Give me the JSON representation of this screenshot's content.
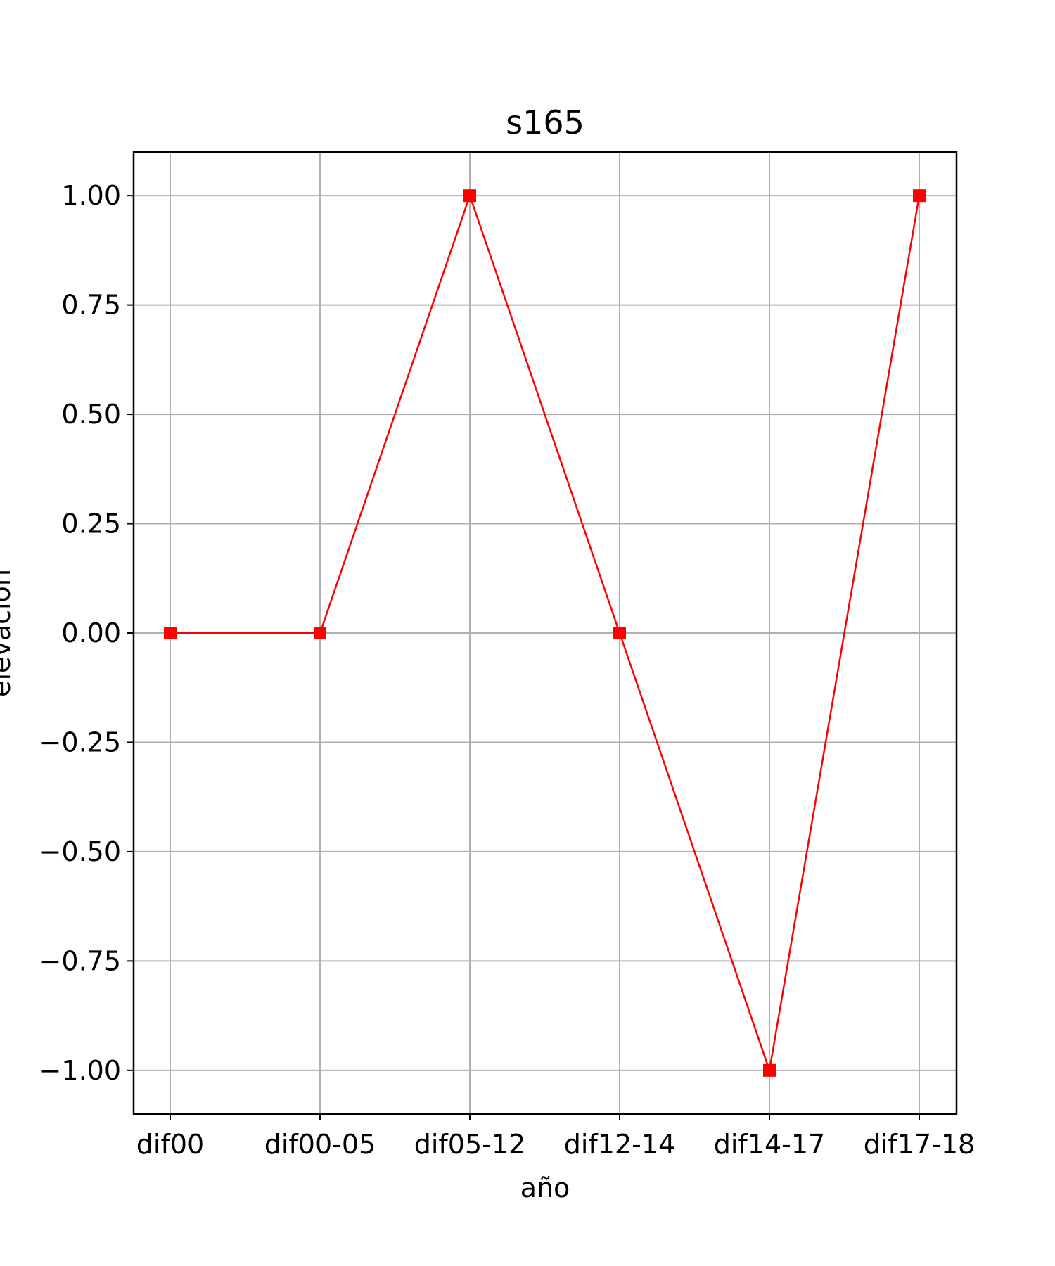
{
  "chart_data": {
    "type": "line",
    "title": "s165",
    "xlabel": "año",
    "ylabel": "elevación",
    "categories": [
      "dif00",
      "dif00-05",
      "dif05-12",
      "dif12-14",
      "dif14-17",
      "dif17-18"
    ],
    "series": [
      {
        "values": [
          0,
          0,
          1,
          0,
          -1,
          1
        ],
        "color": "#ff0000",
        "marker": "square"
      }
    ],
    "yticks": [
      1.0,
      0.75,
      0.5,
      0.25,
      0.0,
      -0.25,
      -0.5,
      -0.75,
      -1.0
    ],
    "ytick_labels": [
      "1.00",
      "0.75",
      "0.50",
      "0.25",
      "0.00",
      "−0.25",
      "−0.50",
      "−0.75",
      "−1.00"
    ],
    "ylim": [
      -1.1,
      1.1
    ],
    "grid": true
  }
}
